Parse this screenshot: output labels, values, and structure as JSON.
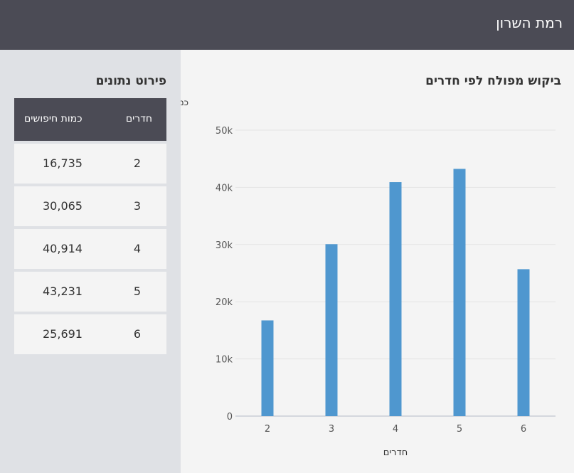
{
  "header": {
    "title": "רמת השרון"
  },
  "chart_data": {
    "type": "bar",
    "title": "ביקוש מפולח לפי חדרים",
    "xlabel": "חדרים",
    "ylabel": "כמות חיפושים",
    "categories": [
      "2",
      "3",
      "4",
      "5",
      "6"
    ],
    "values": [
      16735,
      30065,
      40914,
      43231,
      25691
    ],
    "ylim": [
      0,
      50000
    ],
    "yticks": [
      0,
      10000,
      20000,
      30000,
      40000,
      50000
    ],
    "ytick_labels": [
      "0",
      "10k",
      "20k",
      "30k",
      "40k",
      "50k"
    ],
    "grid": true,
    "bar_color": "#4f97cf"
  },
  "table": {
    "title": "פירוט נתונים",
    "headers": {
      "rooms": "חדרים",
      "count": "כמות חיפושים"
    },
    "rows": [
      {
        "rooms": "2",
        "count": "16,735"
      },
      {
        "rooms": "3",
        "count": "30,065"
      },
      {
        "rooms": "4",
        "count": "40,914"
      },
      {
        "rooms": "5",
        "count": "43,231"
      },
      {
        "rooms": "6",
        "count": "25,691"
      }
    ]
  }
}
